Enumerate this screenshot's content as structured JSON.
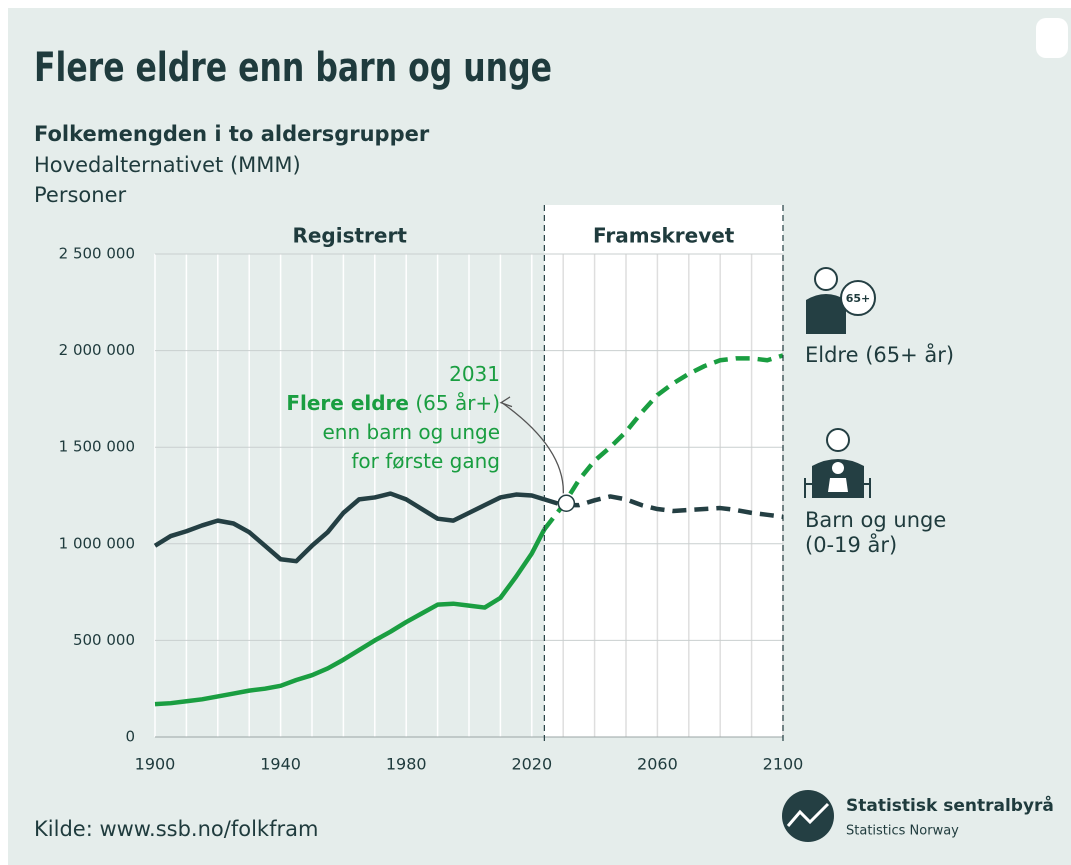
{
  "chart_data": {
    "type": "line",
    "title": "Flere eldre enn barn og unge",
    "subtitle": "Folkemengden i to aldersgrupper",
    "subtitle2": "Hovedalternativet (MMM)",
    "unit": "Personer",
    "source": "Kilde: www.ssb.no/folkfram",
    "logo": {
      "name": "Statistisk sentralbyrå",
      "name_en": "Statistics Norway"
    },
    "icon_label": "65+",
    "regions": [
      {
        "label": "Registrert",
        "from": 1900,
        "to": 2024
      },
      {
        "label": "Framskrevet",
        "from": 2024,
        "to": 2100
      }
    ],
    "x": [
      1900,
      1905,
      1910,
      1915,
      1920,
      1925,
      1930,
      1935,
      1940,
      1945,
      1950,
      1955,
      1960,
      1965,
      1970,
      1975,
      1980,
      1985,
      1990,
      1995,
      2000,
      2005,
      2010,
      2015,
      2020,
      2024,
      2030,
      2035,
      2040,
      2045,
      2050,
      2055,
      2060,
      2065,
      2070,
      2075,
      2080,
      2085,
      2090,
      2095,
      2100
    ],
    "series": [
      {
        "name": "Eldre (65+ år)",
        "color": "#1a9e41",
        "values": [
          170000,
          175000,
          185000,
          195000,
          210000,
          225000,
          240000,
          250000,
          265000,
          295000,
          320000,
          355000,
          400000,
          450000,
          500000,
          545000,
          595000,
          640000,
          685000,
          690000,
          680000,
          670000,
          720000,
          830000,
          950000,
          1075000,
          1200000,
          1330000,
          1430000,
          1500000,
          1580000,
          1680000,
          1770000,
          1830000,
          1880000,
          1920000,
          1950000,
          1960000,
          1960000,
          1950000,
          1975000
        ]
      },
      {
        "name": "Barn og unge (0-19 år)",
        "color": "#243f43",
        "values": [
          990000,
          1040000,
          1065000,
          1095000,
          1120000,
          1105000,
          1060000,
          990000,
          920000,
          910000,
          990000,
          1060000,
          1160000,
          1230000,
          1240000,
          1260000,
          1230000,
          1180000,
          1130000,
          1120000,
          1160000,
          1200000,
          1240000,
          1255000,
          1250000,
          1230000,
          1200000,
          1200000,
          1225000,
          1245000,
          1230000,
          1200000,
          1180000,
          1170000,
          1175000,
          1180000,
          1185000,
          1175000,
          1160000,
          1150000,
          1140000
        ]
      }
    ],
    "annotation": {
      "x": 2031,
      "y": 1210000,
      "bold": "Flere eldre",
      "text": "(65 år+)",
      "line2": "enn barn og unge",
      "line3": "for første gang"
    },
    "xlim": [
      1900,
      2100
    ],
    "xticks": [
      1900,
      1940,
      1980,
      2020,
      2060,
      2100
    ],
    "xgrid": [
      1910,
      1920,
      1930,
      1950,
      1960,
      1970,
      1990,
      2000,
      2010,
      2030,
      2040,
      2050,
      2070,
      2080,
      2090
    ],
    "ylim": [
      0,
      2500000
    ],
    "yticks": [
      0,
      {
        "value": 500000,
        "label": "500 000"
      },
      {
        "value": 1000000,
        "label": "1 000 000"
      },
      {
        "value": 1500000,
        "label": "1 500 000"
      },
      {
        "value": 2000000,
        "label": "2 000 000"
      },
      {
        "value": 2500000,
        "label": "2 500 000"
      }
    ],
    "grid": true
  }
}
